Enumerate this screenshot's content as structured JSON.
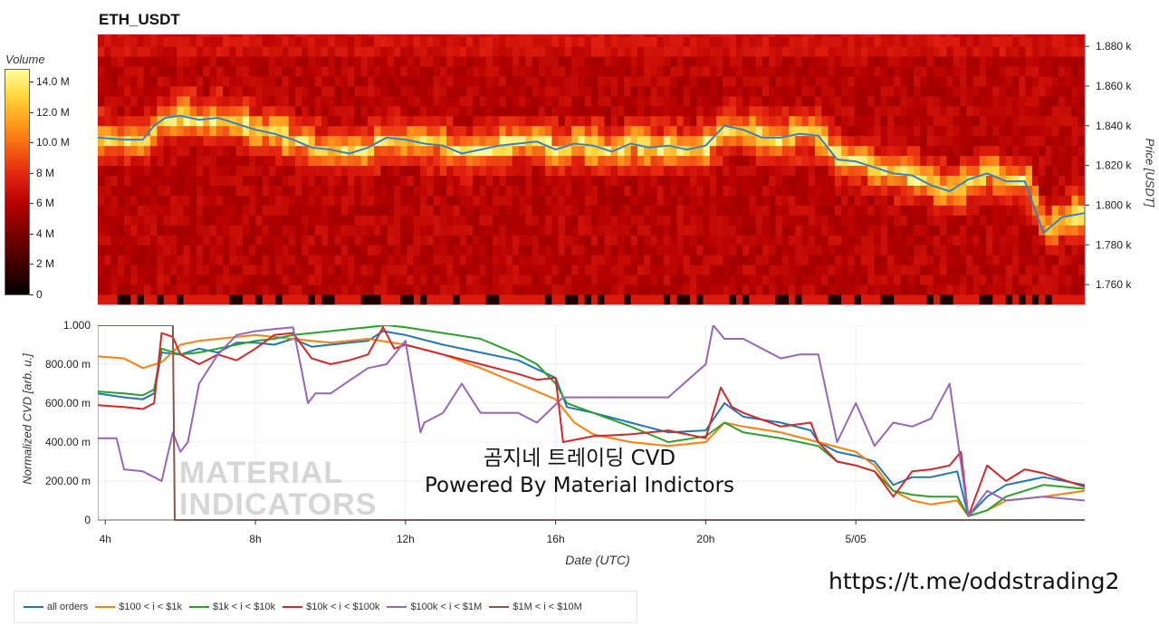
{
  "title": "ETH_USDT",
  "colorbar": {
    "title": "Volume",
    "ticks": [
      "14.0 M",
      "12.0 M",
      "10.0 M",
      "8 M",
      "6 M",
      "4 M",
      "2 M",
      "0"
    ],
    "tick_values": [
      14,
      12,
      10,
      8,
      6,
      4,
      2,
      0
    ]
  },
  "chart_data": [
    {
      "type": "heatmap",
      "x": [
        "4h",
        "8h",
        "12h",
        "16h",
        "20h",
        "5/05"
      ],
      "y_ticks": [
        "1.760 k",
        "1.780 k",
        "1.800 k",
        "1.820 k",
        "1.840 k",
        "1.860 k",
        "1.880 k"
      ],
      "ylabel": "Price [USDT]",
      "ylim": [
        1750,
        1886
      ],
      "price_line": {
        "x_hours": [
          3.8,
          4.5,
          5.0,
          5.3,
          5.6,
          6.0,
          6.5,
          7.0,
          7.5,
          8.0,
          8.5,
          9.0,
          9.5,
          10.0,
          10.5,
          11.0,
          11.5,
          12.0,
          12.5,
          13.0,
          13.5,
          14.0,
          14.5,
          15.0,
          15.5,
          16.0,
          16.5,
          17.0,
          17.5,
          18.0,
          18.5,
          19.0,
          19.5,
          20.0,
          20.5,
          21.0,
          21.5,
          22.0,
          22.5,
          23.0,
          23.5,
          24.0,
          24.5,
          25.0,
          25.5,
          26.0,
          26.5,
          27.0,
          27.5,
          28.0,
          28.5,
          29.0,
          29.5,
          30.1
        ],
        "price": [
          1834,
          1833,
          1833,
          1840,
          1844,
          1845,
          1843,
          1844,
          1841,
          1838,
          1836,
          1833,
          1829,
          1828,
          1826,
          1829,
          1834,
          1833,
          1831,
          1830,
          1826,
          1828,
          1830,
          1831,
          1832,
          1828,
          1831,
          1830,
          1827,
          1831,
          1829,
          1830,
          1828,
          1830,
          1840,
          1838,
          1834,
          1834,
          1836,
          1835,
          1823,
          1822,
          1819,
          1816,
          1815,
          1810,
          1807,
          1813,
          1816,
          1812,
          1812,
          1786,
          1794,
          1796
        ]
      }
    },
    {
      "type": "line",
      "x": [
        "4h",
        "8h",
        "12h",
        "16h",
        "20h",
        "5/05"
      ],
      "x_hours_ticks": [
        4,
        8,
        12,
        16,
        20,
        24
      ],
      "xlim_hours": [
        3.8,
        30.1
      ],
      "xlabel": "Date (UTC)",
      "ylabel": "Normalized CVD [arb. u.]",
      "y_ticks": [
        "0",
        "200.00 m",
        "400.00 m",
        "600.00 m",
        "800.00 m",
        "1.000"
      ],
      "ylim": [
        0,
        1
      ],
      "series": [
        {
          "name": "all orders",
          "color": "#1f77b4",
          "x": [
            3.8,
            4.5,
            5.0,
            5.3,
            5.5,
            6.0,
            6.5,
            7.0,
            7.5,
            8.0,
            8.5,
            9.0,
            9.5,
            10.0,
            10.5,
            11.0,
            11.4,
            12.0,
            13.0,
            14.0,
            15.0,
            16.0,
            16.3,
            17.0,
            18.0,
            19.0,
            20.0,
            20.5,
            21.0,
            22.0,
            22.8,
            23.0,
            23.5,
            24.0,
            24.5,
            25.0,
            25.5,
            26.0,
            26.7,
            27.0,
            27.5,
            28.0,
            29.0,
            30.1
          ],
          "y": [
            0.65,
            0.63,
            0.62,
            0.65,
            0.86,
            0.85,
            0.88,
            0.86,
            0.91,
            0.91,
            0.9,
            0.93,
            0.89,
            0.9,
            0.91,
            0.92,
            0.97,
            0.95,
            0.9,
            0.86,
            0.82,
            0.73,
            0.58,
            0.55,
            0.5,
            0.45,
            0.46,
            0.6,
            0.53,
            0.5,
            0.46,
            0.4,
            0.35,
            0.33,
            0.3,
            0.18,
            0.22,
            0.22,
            0.25,
            0.02,
            0.12,
            0.18,
            0.22,
            0.18
          ]
        },
        {
          "name": "$100 < i < $1k",
          "color": "#ff7f0e",
          "x": [
            3.8,
            4.5,
            5.0,
            5.5,
            6.0,
            6.5,
            7.0,
            7.5,
            8.0,
            8.5,
            9.0,
            9.5,
            10.0,
            10.5,
            11.0,
            12.0,
            13.0,
            14.0,
            15.0,
            16.0,
            16.5,
            17.0,
            18.0,
            19.0,
            20.0,
            20.5,
            21.0,
            22.0,
            23.0,
            24.0,
            24.5,
            25.0,
            25.5,
            26.0,
            26.7,
            27.0,
            27.5,
            28.0,
            29.0,
            30.1
          ],
          "y": [
            0.84,
            0.83,
            0.78,
            0.81,
            0.9,
            0.92,
            0.93,
            0.94,
            0.95,
            0.94,
            0.93,
            0.92,
            0.91,
            0.92,
            0.93,
            0.9,
            0.85,
            0.78,
            0.7,
            0.62,
            0.5,
            0.44,
            0.4,
            0.38,
            0.4,
            0.5,
            0.48,
            0.45,
            0.4,
            0.35,
            0.28,
            0.15,
            0.1,
            0.08,
            0.1,
            0.02,
            0.05,
            0.1,
            0.12,
            0.15
          ]
        },
        {
          "name": "$1k < i < $10k",
          "color": "#2ca02c",
          "x": [
            3.8,
            4.5,
            5.0,
            5.3,
            5.5,
            6.0,
            6.5,
            7.0,
            7.5,
            8.0,
            8.5,
            9.0,
            9.5,
            10.0,
            10.5,
            11.0,
            11.5,
            12.0,
            13.0,
            14.0,
            15.0,
            15.5,
            16.0,
            16.3,
            17.0,
            18.0,
            19.0,
            20.0,
            20.5,
            21.0,
            22.0,
            23.0,
            23.5,
            24.0,
            24.5,
            25.0,
            25.5,
            26.0,
            26.7,
            27.0,
            27.5,
            28.0,
            29.0,
            30.1
          ],
          "y": [
            0.66,
            0.65,
            0.64,
            0.67,
            0.88,
            0.85,
            0.86,
            0.88,
            0.9,
            0.92,
            0.93,
            0.95,
            0.96,
            0.97,
            0.98,
            0.99,
            1.0,
            0.99,
            0.96,
            0.93,
            0.85,
            0.8,
            0.7,
            0.6,
            0.55,
            0.48,
            0.4,
            0.43,
            0.5,
            0.45,
            0.42,
            0.38,
            0.3,
            0.28,
            0.25,
            0.15,
            0.13,
            0.12,
            0.12,
            0.02,
            0.05,
            0.12,
            0.18,
            0.16
          ]
        },
        {
          "name": "$10k < i < $100k",
          "color": "#d62728",
          "x": [
            3.8,
            4.5,
            5.0,
            5.3,
            5.5,
            5.8,
            6.0,
            6.5,
            7.0,
            7.5,
            8.0,
            8.5,
            9.0,
            9.5,
            10.0,
            10.5,
            11.0,
            11.4,
            11.7,
            12.0,
            13.0,
            14.0,
            15.0,
            15.5,
            16.0,
            16.2,
            17.0,
            18.0,
            19.0,
            20.0,
            20.4,
            20.7,
            21.0,
            22.0,
            22.8,
            23.0,
            23.5,
            24.0,
            24.5,
            25.0,
            25.5,
            26.0,
            26.5,
            26.8,
            27.0,
            27.5,
            28.0,
            28.5,
            29.0,
            30.1
          ],
          "y": [
            0.59,
            0.58,
            0.57,
            0.6,
            0.96,
            0.94,
            0.85,
            0.8,
            0.85,
            0.82,
            0.88,
            0.95,
            0.96,
            0.83,
            0.8,
            0.82,
            0.85,
            0.99,
            0.88,
            0.9,
            0.85,
            0.8,
            0.75,
            0.72,
            0.73,
            0.4,
            0.43,
            0.44,
            0.46,
            0.42,
            0.68,
            0.58,
            0.55,
            0.48,
            0.5,
            0.4,
            0.3,
            0.28,
            0.25,
            0.12,
            0.25,
            0.26,
            0.28,
            0.35,
            0.02,
            0.28,
            0.2,
            0.26,
            0.24,
            0.17
          ]
        },
        {
          "name": "$100k < i < $1M",
          "color": "#9467bd",
          "x": [
            3.8,
            4.3,
            4.5,
            5.0,
            5.3,
            5.5,
            5.8,
            6.0,
            6.2,
            6.5,
            7.0,
            7.5,
            8.0,
            8.5,
            9.0,
            9.2,
            9.4,
            9.6,
            10.0,
            11.0,
            11.5,
            12.0,
            12.4,
            12.5,
            13.0,
            13.5,
            14.0,
            15.0,
            15.5,
            16.2,
            16.5,
            17.0,
            18.0,
            19.0,
            20.0,
            20.2,
            20.5,
            21.0,
            22.0,
            22.5,
            23.0,
            23.5,
            24.0,
            24.5,
            25.0,
            25.5,
            26.0,
            26.5,
            27.0,
            27.5,
            28.0,
            29.0,
            30.1
          ],
          "y": [
            0.42,
            0.42,
            0.26,
            0.25,
            0.22,
            0.2,
            0.45,
            0.35,
            0.4,
            0.7,
            0.85,
            0.95,
            0.97,
            0.98,
            0.99,
            0.8,
            0.6,
            0.65,
            0.65,
            0.78,
            0.8,
            0.92,
            0.45,
            0.5,
            0.55,
            0.7,
            0.55,
            0.55,
            0.5,
            0.63,
            0.63,
            0.63,
            0.63,
            0.63,
            0.8,
            1.0,
            0.93,
            0.93,
            0.83,
            0.85,
            0.85,
            0.4,
            0.6,
            0.38,
            0.5,
            0.48,
            0.52,
            0.7,
            0.02,
            0.15,
            0.1,
            0.12,
            0.1
          ]
        },
        {
          "name": "$1M < i < $10M",
          "color": "#8c564b",
          "x": [
            3.8,
            5.8,
            5.85,
            30.1
          ],
          "y": [
            1.0,
            1.0,
            0.0,
            0.0
          ]
        }
      ]
    }
  ],
  "watermark": {
    "line1": "곰지네 트레이딩 CVD",
    "line2": "Powered By Material Indictors",
    "logo_line1": "MATERIAL",
    "logo_line2": "INDICATORS"
  },
  "url": "https://t.me/oddstrading2"
}
